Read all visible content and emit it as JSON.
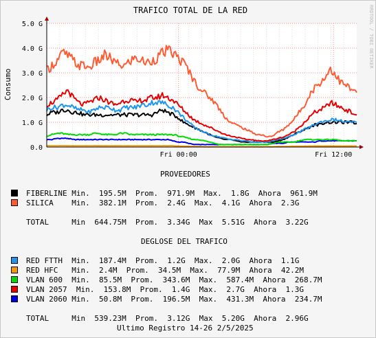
{
  "chart_data": {
    "type": "area",
    "title": "TRAFICO TOTAL DE LA RED",
    "ylabel": "Consumo",
    "side_label": "RRDTOOL / TOBI OETIKER",
    "ylim": [
      0,
      5
    ],
    "y_unit": "G",
    "y_ticks": [
      "0.0",
      "1.0 G",
      "2.0 G",
      "3.0 G",
      "4.0 G",
      "5.0 G"
    ],
    "x_ticks": [
      "Fri 00:00",
      "Fri 12:00"
    ],
    "grid": true,
    "series": [
      {
        "name": "SILICA",
        "color": "#ff5a32",
        "values": [
          3.1,
          3.3,
          3.5,
          3.8,
          3.7,
          3.5,
          3.3,
          3.3,
          3.2,
          3.4,
          3.5,
          3.7,
          3.6,
          3.4,
          3.3,
          3.3,
          3.5,
          3.6,
          3.5,
          3.4,
          3.5,
          3.6,
          3.8,
          3.9,
          3.8,
          3.6,
          3.4,
          3.1,
          2.7,
          2.4,
          2.2,
          2.0,
          1.8,
          1.5,
          1.2,
          1.0,
          0.9,
          0.8,
          0.7,
          0.6,
          0.5,
          0.5,
          0.4,
          0.45,
          0.6,
          0.7,
          0.9,
          1.1,
          1.4,
          1.7,
          2.1,
          2.4,
          2.6,
          2.8,
          3.2,
          2.9,
          2.6,
          2.5,
          2.3,
          2.2
        ]
      },
      {
        "name": "VLAN 2057",
        "color": "#e60000",
        "values": [
          1.7,
          1.8,
          1.9,
          2.1,
          2.3,
          2.0,
          1.8,
          1.7,
          1.8,
          1.9,
          2.0,
          1.9,
          1.8,
          1.7,
          1.8,
          1.9,
          1.9,
          1.8,
          1.9,
          1.9,
          2.0,
          2.0,
          2.1,
          2.0,
          1.9,
          1.7,
          1.5,
          1.3,
          1.1,
          1.0,
          0.9,
          0.8,
          0.7,
          0.6,
          0.5,
          0.45,
          0.4,
          0.35,
          0.3,
          0.3,
          0.25,
          0.25,
          0.25,
          0.3,
          0.35,
          0.4,
          0.5,
          0.6,
          0.8,
          1.0,
          1.2,
          1.4,
          1.5,
          1.6,
          1.8,
          1.7,
          1.6,
          1.5,
          1.4,
          1.3
        ]
      },
      {
        "name": "RED FTTH",
        "color": "#1e96f0",
        "values": [
          1.5,
          1.6,
          1.6,
          1.7,
          1.7,
          1.6,
          1.5,
          1.5,
          1.4,
          1.5,
          1.6,
          1.6,
          1.6,
          1.5,
          1.5,
          1.6,
          1.6,
          1.6,
          1.7,
          1.7,
          1.8,
          1.8,
          1.8,
          1.7,
          1.6,
          1.4,
          1.2,
          1.0,
          0.8,
          0.7,
          0.6,
          0.5,
          0.45,
          0.4,
          0.35,
          0.3,
          0.3,
          0.25,
          0.25,
          0.2,
          0.2,
          0.2,
          0.2,
          0.25,
          0.3,
          0.35,
          0.4,
          0.5,
          0.6,
          0.7,
          0.8,
          0.9,
          1.0,
          1.05,
          1.1,
          1.1,
          1.05,
          1.0,
          1.0,
          1.0
        ]
      },
      {
        "name": "FIBERLINE",
        "color": "#000000",
        "values": [
          1.3,
          1.4,
          1.4,
          1.5,
          1.5,
          1.4,
          1.4,
          1.3,
          1.3,
          1.3,
          1.3,
          1.3,
          1.3,
          1.3,
          1.3,
          1.3,
          1.3,
          1.3,
          1.3,
          1.3,
          1.3,
          1.4,
          1.5,
          1.4,
          1.3,
          1.2,
          1.0,
          0.9,
          0.8,
          0.7,
          0.6,
          0.5,
          0.4,
          0.35,
          0.3,
          0.3,
          0.25,
          0.2,
          0.2,
          0.2,
          0.2,
          0.2,
          0.2,
          0.2,
          0.25,
          0.3,
          0.4,
          0.5,
          0.6,
          0.7,
          0.8,
          0.9,
          0.9,
          1.0,
          1.0,
          1.0,
          1.0,
          1.0,
          1.0,
          0.95
        ]
      },
      {
        "name": "VLAN 600",
        "color": "#00dc00",
        "values": [
          0.45,
          0.5,
          0.55,
          0.55,
          0.5,
          0.5,
          0.5,
          0.5,
          0.5,
          0.55,
          0.55,
          0.5,
          0.5,
          0.5,
          0.55,
          0.55,
          0.5,
          0.5,
          0.5,
          0.5,
          0.5,
          0.5,
          0.5,
          0.5,
          0.5,
          0.45,
          0.4,
          0.35,
          0.3,
          0.3,
          0.25,
          0.2,
          0.15,
          0.1,
          0.1,
          0.1,
          0.1,
          0.1,
          0.1,
          0.1,
          0.1,
          0.1,
          0.1,
          0.15,
          0.2,
          0.2,
          0.2,
          0.2,
          0.25,
          0.3,
          0.3,
          0.3,
          0.3,
          0.3,
          0.3,
          0.3,
          0.25,
          0.25,
          0.25,
          0.25
        ]
      },
      {
        "name": "VLAN 2060",
        "color": "#0000e6",
        "values": [
          0.3,
          0.3,
          0.35,
          0.35,
          0.35,
          0.3,
          0.3,
          0.3,
          0.3,
          0.3,
          0.3,
          0.3,
          0.3,
          0.3,
          0.3,
          0.3,
          0.3,
          0.3,
          0.3,
          0.3,
          0.3,
          0.3,
          0.3,
          0.3,
          0.25,
          0.2,
          0.2,
          0.15,
          0.1,
          0.1,
          0.1,
          0.1,
          0.1,
          0.1,
          0.1,
          0.1,
          0.1,
          0.1,
          0.1,
          0.1,
          0.1,
          0.1,
          0.1,
          0.15,
          0.15,
          0.15,
          0.2,
          0.2,
          0.2,
          0.2,
          0.2,
          0.2,
          0.25,
          0.25,
          0.25,
          0.25,
          0.25,
          0.25,
          0.25,
          0.25
        ]
      },
      {
        "name": "RED HFC",
        "color": "#f59a00",
        "values": [
          0.05,
          0.05,
          0.05,
          0.05,
          0.05,
          0.05,
          0.05,
          0.05,
          0.05,
          0.05,
          0.05,
          0.05,
          0.05,
          0.05,
          0.05,
          0.05,
          0.05,
          0.05,
          0.05,
          0.05,
          0.05,
          0.05,
          0.05,
          0.05,
          0.05,
          0.04,
          0.03,
          0.03,
          0.02,
          0.02,
          0.01,
          0.01,
          0.01,
          0.01,
          0.01,
          0.01,
          0.01,
          0.01,
          0.01,
          0.01,
          0.01,
          0.01,
          0.01,
          0.01,
          0.02,
          0.02,
          0.02,
          0.03,
          0.03,
          0.03,
          0.04,
          0.04,
          0.04,
          0.04,
          0.04,
          0.04,
          0.04,
          0.04,
          0.04,
          0.04
        ]
      }
    ]
  },
  "sections": {
    "providers_title": "PROVEEDORES",
    "breakdown_title": "DEGLOSE DEL TRAFICO"
  },
  "providers": [
    {
      "color": "#000000",
      "text": "FIBERLINE Min.  195.5M  Prom.  971.9M  Max.  1.8G  Ahora  961.9M"
    },
    {
      "color": "#ff5a32",
      "text": "SILICA    Min.  382.1M  Prom.  2.4G  Max.  4.1G  Ahora  2.3G"
    }
  ],
  "providers_total": "TOTAL     Min  644.75M  Prom.  3.34G  Max  5.51G  Ahora  3.22G",
  "breakdown": [
    {
      "color": "#1e96f0",
      "text": "RED FTTH  Min.  187.4M  Prom.  1.2G  Max.  2.0G  Ahora  1.1G"
    },
    {
      "color": "#f59a00",
      "text": "RED HFC   Min.  2.4M  Prom.  34.5M  Max.  77.9M  Ahora  42.2M"
    },
    {
      "color": "#00dc00",
      "text": "VLAN 600  Min.  85.5M  Prom.  343.6M  Max.  587.4M  Ahora  268.7M"
    },
    {
      "color": "#e60000",
      "text": "VLAN 2057  Min.  153.8M  Prom.  1.4G  Max.  2.7G  Ahora  1.3G"
    },
    {
      "color": "#0000e6",
      "text": "VLAN 2060 Min.  50.8M  Prom.  196.5M  Max.  431.3M  Ahora  234.7M"
    }
  ],
  "breakdown_total": "TOTAL     Min  539.23M  Prom.  3.12G  Max  5.20G  Ahora  2.96G",
  "footer": "Ultimo Registro 14-26 2/5/2025"
}
